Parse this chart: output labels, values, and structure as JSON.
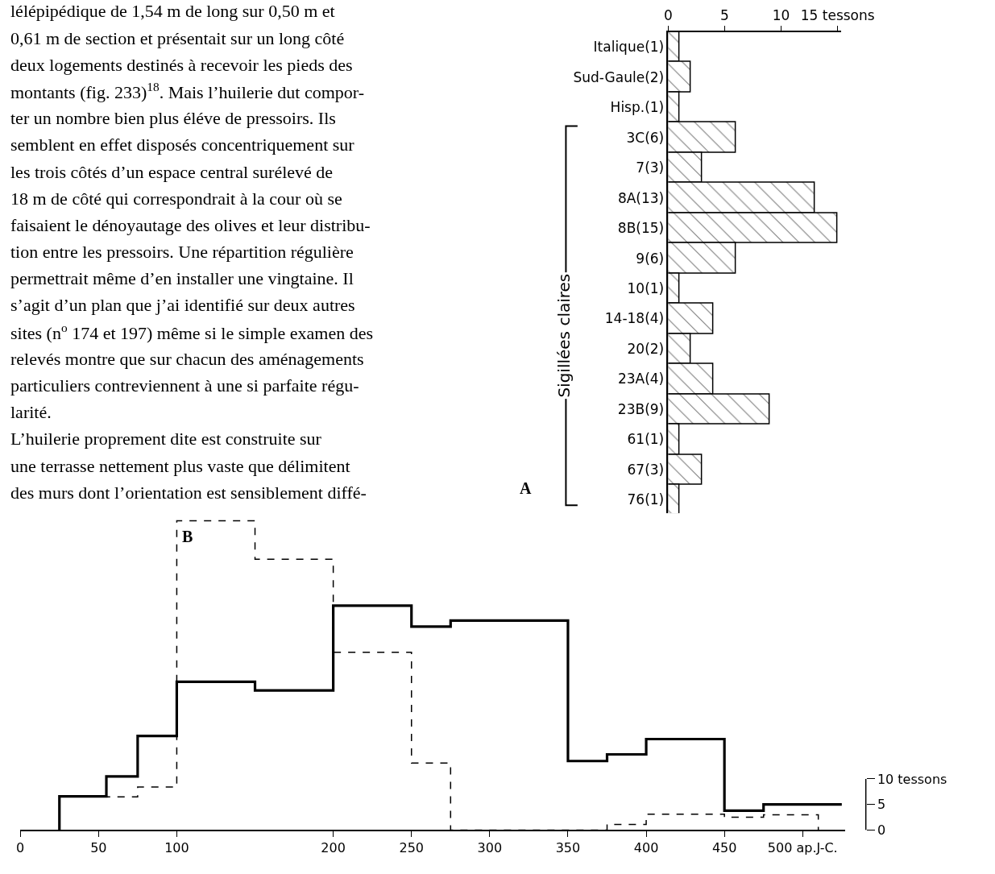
{
  "chart_data": [
    {
      "type": "bar",
      "orientation": "horizontal",
      "ylabel": "Sigillées claires",
      "categories": [
        "Italique(1)",
        "Sud-Gaule(2)",
        "Hisp.(1)",
        "3C(6)",
        "7(3)",
        "8A(13)",
        "8B(15)",
        "9(6)",
        "10(1)",
        "14-18(4)",
        "20(2)",
        "23A(4)",
        "23B(9)",
        "61(1)",
        "67(3)",
        "76(1)"
      ],
      "values": [
        1,
        2,
        1,
        6,
        3,
        13,
        15,
        6,
        1,
        4,
        2,
        4,
        9,
        1,
        3,
        1
      ],
      "color": "#000000",
      "xlim": [
        0,
        15.3
      ],
      "xticks": [
        0,
        5,
        10,
        {
          "value": 15,
          "label": "15 tessons"
        }
      ],
      "annotations": [
        "A",
        "lélépipédique de 1,54 m de long sur 0,50 m et",
        "0,61 m de section et présentait sur un long côté",
        "deux logements destinés à recevoir les pieds des",
        "montants (fig. 233)$^{18}$. Mais l’huilerie dut compor-",
        "ter un nombre bien plus éléve de pressoirs. Ils",
        "semblent en effet disposés concentriquement sur",
        "les trois côtés d’un espace central surélevé de",
        "18 m de côté qui correspondrait à la cour où se",
        "faisaient le dénoyautage des olives et leur distribu-",
        "tion entre les pressoirs. Une répartition régulière",
        "permettrait même d’en installer une vingtaine. Il",
        "s’agit d’un plan que j’ai identifié sur deux autres",
        "sites (n$^{o}$ 174 et 197) même si le simple examen des",
        "relevés montre que sur chacun des aménagements",
        "particuliers contreviennent à une si parfaite régu-",
        "larité.",
        "L’huilerie proprement dite est construite sur",
        "une terrasse nettement plus vaste que délimitent",
        "des murs dont l’orientation est sensiblement diffé-"
      ]
    },
    {
      "type": "step",
      "series": [
        {
          "color": "#000000",
          "line_style": "solid",
          "x": [
            25,
            25,
            55,
            75,
            100,
            150,
            200,
            250,
            275,
            350,
            375,
            400,
            450,
            475,
            525
          ],
          "values": [
            0,
            6.6,
            10.5,
            18.4,
            29,
            27.3,
            43.9,
            39.8,
            41,
            13.5,
            14.8,
            17.8,
            3.8,
            5,
            5
          ]
        },
        {
          "color": "#000000",
          "line_style": "dashed",
          "x": [
            25,
            55,
            75,
            100,
            150,
            200,
            250,
            275,
            375,
            400,
            450,
            475,
            510
          ],
          "values": [
            6.5,
            6.5,
            8.4,
            60.5,
            53,
            34.8,
            13.1,
            0,
            1.1,
            3.1,
            2.5,
            3,
            0
          ]
        }
      ],
      "xlim": [
        0,
        527
      ],
      "xticks": [
        0,
        50,
        100,
        200,
        250,
        300,
        350,
        400,
        450,
        {
          "value": 500,
          "label": "500 ap.J-C."
        }
      ],
      "ylim": [
        0,
        62
      ],
      "yticks": [
        0,
        5,
        {
          "value": 10,
          "label": "10 tessons"
        }
      ],
      "annotations": [
        "B"
      ]
    }
  ]
}
